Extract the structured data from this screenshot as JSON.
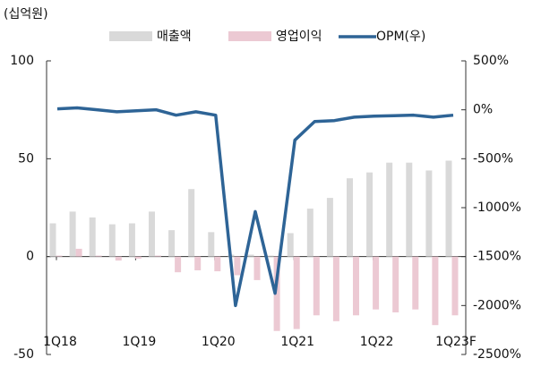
{
  "chart_data": {
    "type": "bar_line",
    "unit_label": "(십억원)",
    "categories": [
      "1Q18",
      null,
      null,
      null,
      "1Q19",
      null,
      null,
      null,
      "1Q20",
      null,
      null,
      null,
      "1Q21",
      null,
      null,
      null,
      "1Q22",
      null,
      null,
      null,
      "1Q23F"
    ],
    "series": [
      {
        "name": "매출액",
        "color": "#d9d9d9",
        "type": "bar",
        "values": [
          17,
          23,
          20,
          16.5,
          17,
          23,
          13.5,
          34.5,
          12.5,
          1,
          1,
          0.5,
          12,
          24.5,
          30,
          40,
          43,
          48,
          48,
          44,
          49
        ]
      },
      {
        "name": "영업이익",
        "color": "#ecc9d3",
        "type": "bar",
        "values": [
          0.5,
          4,
          0.5,
          -2,
          -1,
          0.5,
          -8,
          -7,
          -7.5,
          -9.5,
          -12,
          -38,
          -37,
          -30,
          -33,
          -30,
          -27,
          -28.5,
          -27,
          -35,
          -30
        ]
      },
      {
        "name": "OPM(우)",
        "color": "#2e6496",
        "type": "line",
        "axis": "y2",
        "values": [
          10,
          20,
          0,
          -20,
          -10,
          0,
          -55,
          -20,
          -55,
          -2000,
          -1040,
          -1875,
          -310,
          -120,
          -110,
          -75,
          -65,
          -60,
          -55,
          -75,
          -55
        ]
      }
    ],
    "ylim": [
      -50,
      100
    ],
    "yticks": [
      -50,
      0,
      50,
      100
    ],
    "y2lim": [
      -2500,
      500
    ],
    "y2ticks": [
      {
        "value": -2500,
        "label": "-2500%"
      },
      {
        "value": -2000,
        "label": "-2000%"
      },
      {
        "value": -1500,
        "label": "-1500%"
      },
      {
        "value": -1000,
        "label": "-1000%"
      },
      {
        "value": -500,
        "label": "-500%"
      },
      {
        "value": 0,
        "label": "0%"
      },
      {
        "value": 500,
        "label": "500%"
      }
    ],
    "legend": "top"
  }
}
